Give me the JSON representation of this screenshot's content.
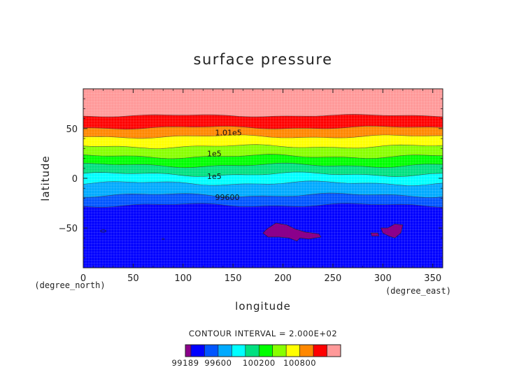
{
  "chart_data": {
    "type": "heatmap",
    "title": "surface pressure",
    "xlabel": "longitude",
    "ylabel": "latitude",
    "x_unit": "(degree_east)",
    "y_unit": "(degree_north)",
    "xlim": [
      0,
      360
    ],
    "ylim": [
      -90,
      90
    ],
    "x_ticks": [
      0,
      50,
      100,
      150,
      200,
      250,
      300,
      350
    ],
    "x_tick_labels": [
      "0",
      "50",
      "100",
      "150",
      "200",
      "250",
      "300",
      "350"
    ],
    "y_ticks": [
      -50,
      0,
      50
    ],
    "y_tick_labels": [
      "−50",
      "0",
      "50"
    ],
    "contour_interval_text": "CONTOUR INTERVAL = 2.000E+02",
    "levels": [
      99189,
      99200,
      99400,
      99600,
      99800,
      100000,
      100200,
      100400,
      100600,
      100800,
      101000,
      101200,
      101271
    ],
    "colors": [
      "#8b008b",
      "#0000ff",
      "#0055ff",
      "#00aaff",
      "#00ffff",
      "#00e080",
      "#00ff00",
      "#88ff00",
      "#ffff00",
      "#ff8800",
      "#ff0000",
      "#ff9999"
    ],
    "bands": [
      {
        "value_range": [
          99200,
          99400
        ],
        "lat_range": [
          -90,
          -27
        ],
        "color": "#0000ff"
      },
      {
        "value_range": [
          99400,
          99600
        ],
        "lat_range": [
          -27,
          -17
        ],
        "color": "#0055ff"
      },
      {
        "value_range": [
          99600,
          99800
        ],
        "lat_range": [
          -17,
          -5
        ],
        "color": "#00aaff"
      },
      {
        "value_range": [
          99800,
          100000
        ],
        "lat_range": [
          -5,
          4
        ],
        "color": "#00ffff"
      },
      {
        "value_range": [
          100000,
          100200
        ],
        "lat_range": [
          4,
          13
        ],
        "color": "#00e080"
      },
      {
        "value_range": [
          100200,
          100400
        ],
        "lat_range": [
          13,
          22
        ],
        "color": "#00ff00"
      },
      {
        "value_range": [
          100400,
          100600
        ],
        "lat_range": [
          22,
          32
        ],
        "color": "#88ff00"
      },
      {
        "value_range": [
          100600,
          100800
        ],
        "lat_range": [
          32,
          42
        ],
        "color": "#ffff00"
      },
      {
        "value_range": [
          100800,
          101000
        ],
        "lat_range": [
          42,
          51
        ],
        "color": "#ff8800"
      },
      {
        "value_range": [
          101000,
          101200
        ],
        "lat_range": [
          51,
          63
        ],
        "color": "#ff0000"
      },
      {
        "value_range": [
          101200,
          101271
        ],
        "lat_range": [
          63,
          90
        ],
        "color": "#ff9999"
      }
    ],
    "low_pressure_regions": [
      {
        "value_range": [
          99189,
          99200
        ],
        "color": "#8b008b",
        "outline": [
          [
            180,
            -55
          ],
          [
            184,
            -51
          ],
          [
            193,
            -45
          ],
          [
            204,
            -47
          ],
          [
            212,
            -51
          ],
          [
            222,
            -54
          ],
          [
            236,
            -56
          ],
          [
            238,
            -59
          ],
          [
            226,
            -61
          ],
          [
            217,
            -60
          ],
          [
            214,
            -63
          ],
          [
            206,
            -60
          ],
          [
            196,
            -59
          ],
          [
            185,
            -59
          ]
        ]
      },
      {
        "value_range": [
          99189,
          99200
        ],
        "color": "#8b008b",
        "outline": [
          [
            298,
            -50
          ],
          [
            305,
            -50
          ],
          [
            312,
            -46
          ],
          [
            320,
            -47
          ],
          [
            318,
            -55
          ],
          [
            312,
            -60
          ],
          [
            306,
            -58
          ],
          [
            300,
            -55
          ]
        ]
      },
      {
        "value_range": [
          99189,
          99200
        ],
        "color": "#8b008b",
        "outline": [
          [
            288,
            -55
          ],
          [
            295,
            -55
          ],
          [
            296,
            -58
          ],
          [
            289,
            -58
          ]
        ]
      }
    ],
    "contour_labels": [
      {
        "text": "1.01e5",
        "lon": 132,
        "lat": 46
      },
      {
        "text": "1e5",
        "lon": 124,
        "lat": 25
      },
      {
        "text": "1e5",
        "lon": 124,
        "lat": 2
      },
      {
        "text": "99600",
        "lon": 132,
        "lat": -19
      }
    ],
    "colorbar_labels": [
      {
        "text": "99189",
        "level": 99189
      },
      {
        "text": "99600",
        "level": 99600
      },
      {
        "text": "100200",
        "level": 100200
      },
      {
        "text": "100800",
        "level": 100800
      }
    ]
  }
}
